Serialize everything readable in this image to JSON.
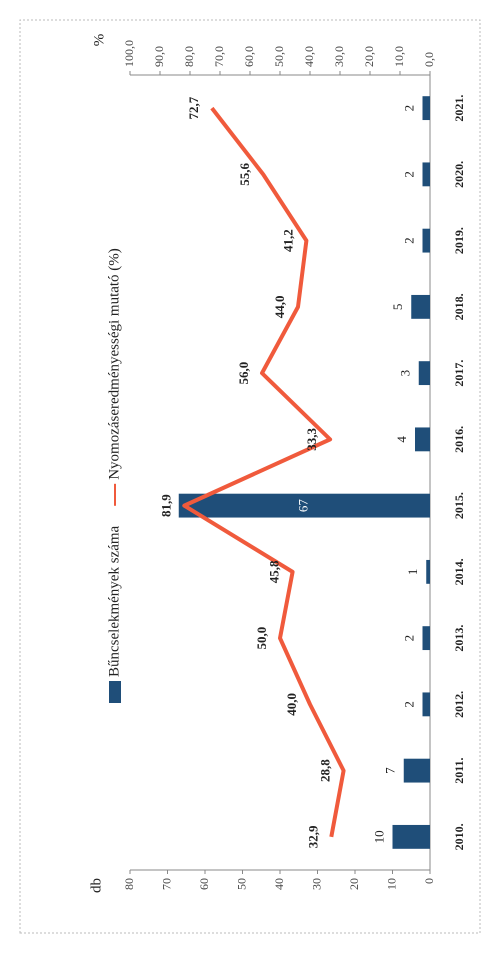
{
  "chart_data": {
    "type": "bar-line",
    "categories": [
      "2010.",
      "2011.",
      "2012.",
      "2013.",
      "2014.",
      "2015.",
      "2016.",
      "2017.",
      "2018.",
      "2019.",
      "2020.",
      "2021."
    ],
    "series": [
      {
        "name": "Bűncselekmények száma",
        "type": "bar",
        "color": "#1f4e79",
        "values": [
          10,
          7,
          2,
          2,
          1,
          67,
          4,
          3,
          5,
          2,
          2,
          2
        ]
      },
      {
        "name": "Nyomozáseredményességi mutató (%)",
        "type": "line",
        "axis": "y2",
        "color": "#f05a3c",
        "values": [
          32.9,
          28.8,
          40.0,
          50.0,
          45.8,
          81.9,
          33.3,
          56.0,
          44.0,
          41.2,
          55.6,
          72.7
        ],
        "value_labels": [
          "32,9",
          "28,8",
          "40,0",
          "50,0",
          "45,8",
          "81,9",
          "33,3",
          "56,0",
          "44,0",
          "41,2",
          "55,6",
          "72,7"
        ]
      }
    ],
    "y_label": "db",
    "y2_label": "%",
    "ylim": [
      0,
      80
    ],
    "yticks": [
      0,
      10,
      20,
      30,
      40,
      50,
      60,
      70,
      80
    ],
    "y2lim": [
      0,
      100
    ],
    "y2ticks": [
      {
        "value": 0,
        "label": "0,0"
      },
      {
        "value": 10,
        "label": "10,0"
      },
      {
        "value": 20,
        "label": "20,0"
      },
      {
        "value": 30,
        "label": "30,0"
      },
      {
        "value": 40,
        "label": "40,0"
      },
      {
        "value": 50,
        "label": "50,0"
      },
      {
        "value": 60,
        "label": "60,0"
      },
      {
        "value": 70,
        "label": "70,0"
      },
      {
        "value": 80,
        "label": "80,0"
      },
      {
        "value": 90,
        "label": "90,0"
      },
      {
        "value": 100,
        "label": "100,0"
      }
    ],
    "rotated": true
  }
}
